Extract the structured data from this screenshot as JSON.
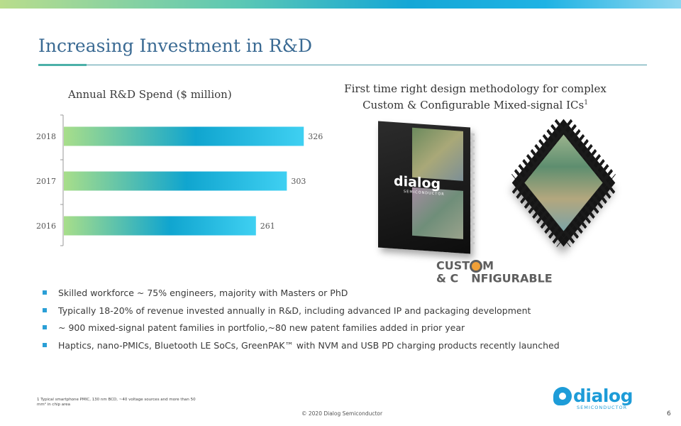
{
  "slide": {
    "title": "Increasing Investment in R&D",
    "page_number": "6",
    "copyright": "© 2020 Dialog Semiconductor",
    "footnote": "1 Typical smartphone PMIC, 130 nm BCD, ~40 voltage sources and more than 50 mm² in chip area"
  },
  "left_panel": {
    "chart_title": "Annual R&D Spend ($ million)"
  },
  "chart_data": {
    "type": "bar",
    "orientation": "horizontal",
    "title": "Annual R&D Spend ($ million)",
    "categories": [
      "2018",
      "2017",
      "2016"
    ],
    "values": [
      326,
      303,
      261
    ],
    "xlabel": "",
    "ylabel": "",
    "xlim": [
      0,
      400
    ],
    "grid": false,
    "colors": {
      "gradient_start": "#a8de8a",
      "gradient_mid": "#10a5cf",
      "gradient_end": "#3fd0f2"
    }
  },
  "right_panel": {
    "title_line1": "First time right design methodology for complex",
    "title_line2": "Custom & Configurable Mixed-signal ICs",
    "title_sup": "1",
    "chip_logo_text": "dialog",
    "chip_logo_sub": "SEMICONDUCTOR",
    "cc_line1_a": "CUST",
    "cc_line1_b": "M",
    "cc_line2_a": "& C",
    "cc_line2_b": "NFIGURABLE"
  },
  "bullets": [
    "Skilled workforce ~ 75% engineers, majority with Masters or PhD",
    "Typically 18-20% of revenue invested annually in R&D, including advanced IP and packaging development",
    "~ 900 mixed-signal patent families in  portfolio,~80 new patent families added in prior year",
    "Haptics, nano-PMICs, Bluetooth LE SoCs, GreenPAK™ with NVM and USB PD charging products recently launched"
  ],
  "brand": {
    "word": "dialog",
    "sub": "SEMICONDUCTOR",
    "color": "#1d9cd8"
  }
}
